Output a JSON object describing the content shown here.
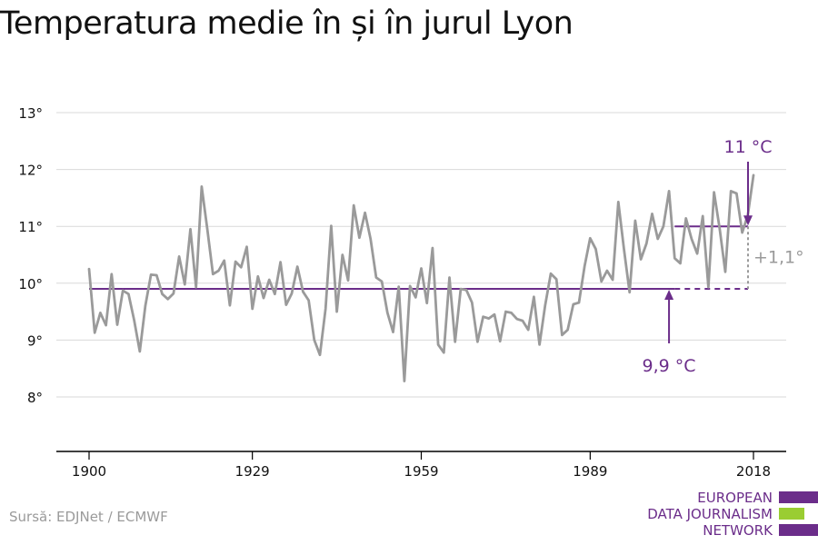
{
  "title": "Temperatura medie în și în jurul Lyon",
  "source": "Sursă: EDJNet / ECMWF",
  "logo": {
    "lines": [
      "EUROPEAN",
      "DATA JOURNALISM",
      "NETWORK"
    ],
    "colors": {
      "text": "#6b2d8a",
      "bar_purple": "#6b2d8a",
      "bar_green": "#9acd32"
    }
  },
  "colors": {
    "series": "#9a9a9a",
    "baseline": "#6b2d8a",
    "grid": "#d9d9d9",
    "axis": "#000000",
    "annotation_purple": "#6b2d8a",
    "annotation_gray": "#9a9a9a"
  },
  "chart_data": {
    "type": "line",
    "xlim": [
      1900,
      2018
    ],
    "ylim": [
      7,
      13
    ],
    "x_ticks": [
      1900,
      1929,
      1959,
      1989,
      2018
    ],
    "y_ticks": [
      8,
      9,
      10,
      11,
      12,
      13
    ],
    "y_tick_labels": [
      "8°",
      "9°",
      "10°",
      "11°",
      "12°",
      "13°"
    ],
    "grid": true,
    "series": [
      {
        "x": [
          1900,
          1901,
          1902,
          1903,
          1904,
          1905,
          1906,
          1907,
          1908,
          1909,
          1910,
          1911,
          1912,
          1913,
          1914,
          1915,
          1916,
          1917,
          1918,
          1919,
          1920,
          1921,
          1922,
          1923,
          1924,
          1925,
          1926,
          1927,
          1928,
          1929,
          1930,
          1931,
          1932,
          1933,
          1934,
          1935,
          1936,
          1937,
          1938,
          1939,
          1940,
          1941,
          1942,
          1943,
          1944,
          1945,
          1946,
          1947,
          1948,
          1949,
          1950,
          1951,
          1952,
          1953,
          1954,
          1955,
          1956,
          1957,
          1958,
          1959,
          1960,
          1961,
          1962,
          1963,
          1964,
          1965,
          1966,
          1967,
          1968,
          1969,
          1970,
          1971,
          1972,
          1973,
          1974,
          1975,
          1976,
          1977,
          1978,
          1979,
          1980,
          1981,
          1982,
          1983,
          1984,
          1985,
          1986,
          1987,
          1988,
          1989,
          1990,
          1991,
          1992,
          1993,
          1994,
          1995,
          1996,
          1997,
          1998,
          1999,
          2000,
          2001,
          2002,
          2003,
          2004,
          2005,
          2006,
          2007,
          2008,
          2009,
          2010,
          2011,
          2012,
          2013,
          2014,
          2015,
          2016,
          2017,
          2018
        ],
        "values": [
          10.25,
          9.13,
          9.48,
          9.26,
          10.16,
          9.27,
          9.87,
          9.81,
          9.35,
          8.8,
          9.6,
          10.15,
          10.14,
          9.81,
          9.72,
          9.82,
          10.47,
          9.98,
          10.95,
          9.93,
          11.7,
          10.95,
          10.16,
          10.22,
          10.4,
          9.61,
          10.38,
          10.28,
          10.64,
          9.55,
          10.12,
          9.74,
          10.06,
          9.81,
          10.37,
          9.62,
          9.82,
          10.29,
          9.85,
          9.7,
          9.0,
          8.74,
          9.55,
          11.01,
          9.5,
          10.5,
          10.05,
          11.37,
          10.8,
          11.24,
          10.78,
          10.1,
          10.03,
          9.48,
          9.14,
          9.94,
          8.28,
          9.95,
          9.75,
          10.26,
          9.65,
          10.62,
          8.92,
          8.78,
          10.1,
          8.97,
          9.9,
          9.88,
          9.66,
          8.97,
          9.41,
          9.38,
          9.45,
          8.98,
          9.5,
          9.48,
          9.37,
          9.34,
          9.18,
          9.76,
          8.92,
          9.61,
          10.17,
          10.07,
          9.09,
          9.18,
          9.63,
          9.66,
          10.3,
          10.79,
          10.6,
          10.03,
          10.22,
          10.06,
          11.43,
          10.6,
          9.84,
          11.1,
          10.42,
          10.7,
          11.22,
          10.78,
          11.0,
          11.62,
          10.44,
          10.35,
          11.14,
          10.78,
          10.52,
          11.18,
          9.93,
          11.6,
          10.96,
          10.2,
          11.62,
          11.58,
          10.89,
          11.2,
          11.9
        ]
      }
    ],
    "reference_lines": [
      {
        "label": "9,9 °C",
        "value": 9.9,
        "from": 1900,
        "to": 2018,
        "dashed_from": 2004
      },
      {
        "label": "11 °C",
        "value": 11.0,
        "from": 2004,
        "to": 2018
      }
    ],
    "annotations": [
      {
        "text": "+1,1°",
        "x": 2018,
        "y_range": [
          9.9,
          11.0
        ]
      }
    ]
  }
}
